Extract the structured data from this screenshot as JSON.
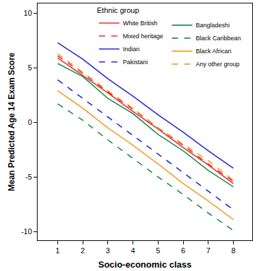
{
  "chart_data": {
    "type": "line",
    "x_label": "Socio-economic class",
    "y_label": "Mean Predicted Age 14 Exam Score",
    "legend_title": "Ethnic group",
    "x": [
      1,
      2,
      3,
      4,
      5,
      6,
      7,
      8
    ],
    "xlim": [
      0.2,
      8.75
    ],
    "xticks": [
      1,
      2,
      3,
      4,
      5,
      6,
      7,
      8
    ],
    "ylim": [
      -10.8,
      10.9
    ],
    "yticks": [
      -10,
      -5,
      0,
      5,
      10
    ],
    "grid": false,
    "legend": "top right",
    "series": [
      {
        "name": "White British",
        "color": "#e8282e",
        "line_style": "solid",
        "values": [
          5.9,
          4.3,
          2.7,
          1.0,
          -0.6,
          -2.3,
          -3.9,
          -5.6
        ]
      },
      {
        "name": "Mixed heritage",
        "color": "#e8282e",
        "line_style": "dashed",
        "values": [
          6.1,
          4.5,
          2.8,
          1.2,
          -0.5,
          -2.1,
          -3.8,
          -5.4
        ]
      },
      {
        "name": "Indian",
        "color": "#2323d9",
        "line_style": "solid",
        "values": [
          7.3,
          5.8,
          4.0,
          2.4,
          0.7,
          -0.9,
          -2.6,
          -4.2
        ]
      },
      {
        "name": "Pakistani",
        "color": "#2323d9",
        "line_style": "dashed",
        "values": [
          3.9,
          2.2,
          0.5,
          -1.2,
          -2.9,
          -4.6,
          -6.3,
          -8.0
        ]
      },
      {
        "name": "Bangladeshi",
        "color": "#1f8a4c",
        "line_style": "solid",
        "values": [
          5.4,
          4.2,
          2.2,
          0.8,
          -1.1,
          -2.6,
          -4.4,
          -5.9
        ]
      },
      {
        "name": "Black Caribbean",
        "color": "#1f8a4c",
        "line_style": "dashed",
        "values": [
          1.7,
          0.2,
          -1.6,
          -3.3,
          -5.0,
          -6.6,
          -8.3,
          -9.9
        ]
      },
      {
        "name": "Black African",
        "color": "#f39c2b",
        "line_style": "solid",
        "values": [
          2.9,
          1.3,
          -0.5,
          -2.1,
          -3.8,
          -5.6,
          -7.2,
          -8.9
        ]
      },
      {
        "name": "Any other group",
        "color": "#f39c2b",
        "line_style": "dashed",
        "values": [
          6.3,
          4.6,
          2.9,
          1.3,
          -0.5,
          -2.0,
          -3.5,
          -5.3
        ]
      }
    ]
  }
}
